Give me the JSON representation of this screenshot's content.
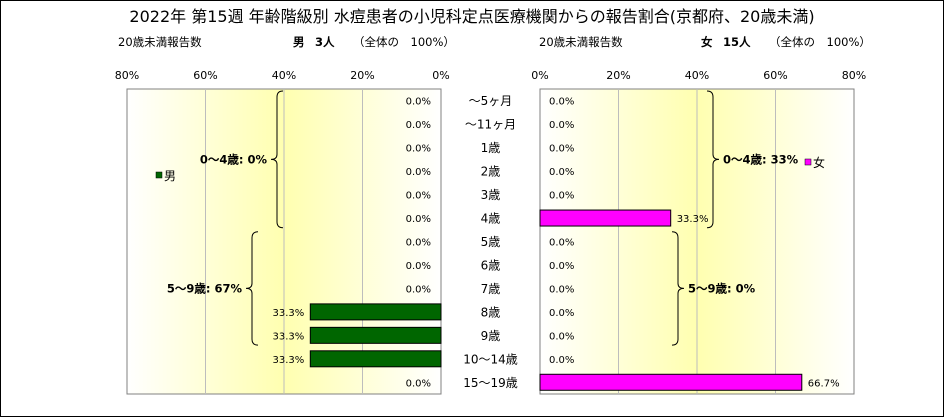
{
  "title": "2022年 第15週 年齢階級別 水痘患者の小児科定点医療機関からの報告割合(京都府、20歳未満)",
  "left_header": {
    "label": "20歳未満報告数",
    "sex": "男",
    "count": "3人",
    "total_note": "（全体の　100%）"
  },
  "right_header": {
    "label": "20歳未満報告数",
    "sex": "女",
    "count": "15人",
    "total_note": "（全体の　100%）"
  },
  "chart_data": {
    "type": "bar",
    "orientation": "horizontal-population-pyramid",
    "categories": [
      "～5ヶ月",
      "～11ヶ月",
      "1歳",
      "2歳",
      "3歳",
      "4歳",
      "5歳",
      "6歳",
      "7歳",
      "8歳",
      "9歳",
      "10～14歳",
      "15～19歳"
    ],
    "xlim": [
      0,
      80
    ],
    "left_ticks": [
      "80%",
      "60%",
      "40%",
      "20%",
      "0%"
    ],
    "right_ticks": [
      "0%",
      "20%",
      "40%",
      "60%",
      "80%"
    ],
    "grid": true,
    "series": [
      {
        "name": "男",
        "side": "left",
        "color": "#006600",
        "values": [
          0,
          0,
          0,
          0,
          0,
          0,
          0,
          0,
          0,
          33.3,
          33.3,
          33.3,
          0
        ],
        "labels": [
          "0.0%",
          "0.0%",
          "0.0%",
          "0.0%",
          "0.0%",
          "0.0%",
          "0.0%",
          "0.0%",
          "0.0%",
          "33.3%",
          "33.3%",
          "33.3%",
          "0.0%"
        ]
      },
      {
        "name": "女",
        "side": "right",
        "color": "#ff00ff",
        "values": [
          0,
          0,
          0,
          0,
          0,
          33.3,
          0,
          0,
          0,
          0,
          0,
          0,
          66.7
        ],
        "labels": [
          "0.0%",
          "0.0%",
          "0.0%",
          "0.0%",
          "0.0%",
          "33.3%",
          "0.0%",
          "0.0%",
          "0.0%",
          "0.0%",
          "0.0%",
          "0.0%",
          "66.7%"
        ]
      }
    ],
    "annotations": {
      "left": [
        {
          "text": "0～4歳: 0%",
          "from": 0,
          "to": 5
        },
        {
          "text": "5～9歳: 67%",
          "from": 6,
          "to": 10
        }
      ],
      "right": [
        {
          "text": "0～4歳: 33%",
          "from": 0,
          "to": 5
        },
        {
          "text": "5～9歳: 0%",
          "from": 6,
          "to": 10
        }
      ]
    },
    "legend": {
      "left": "男",
      "right": "女"
    }
  }
}
